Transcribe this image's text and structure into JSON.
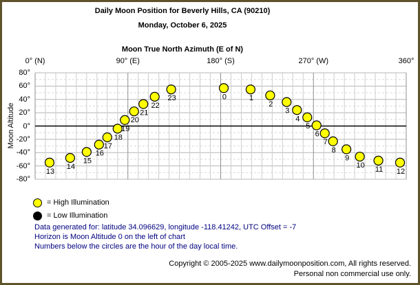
{
  "title": "Daily Moon Position for Beverly Hills, CA (90210)",
  "subtitle": "Monday, October 6, 2025",
  "chart_data": {
    "type": "scatter",
    "title": "Moon True North Azimuth (E of N)",
    "xlabel": "Moon True North Azimuth (E of N)",
    "ylabel": "Moon Altitude",
    "xlim": [
      0,
      360
    ],
    "ylim": [
      -80,
      80
    ],
    "x_minor_step": 10,
    "y_minor_step": 10,
    "y_major_step": 20,
    "grid": true,
    "x_ticks": [
      {
        "value": 0,
        "label": "0° (N)"
      },
      {
        "value": 90,
        "label": "90° (E)"
      },
      {
        "value": 180,
        "label": "180° (S)"
      },
      {
        "value": 270,
        "label": "270° (W)"
      },
      {
        "value": 360,
        "label": "360°"
      }
    ],
    "y_ticks": [
      {
        "value": 80,
        "label": "80°"
      },
      {
        "value": 60,
        "label": "60°"
      },
      {
        "value": 40,
        "label": "40°"
      },
      {
        "value": 20,
        "label": "20°"
      },
      {
        "value": 0,
        "label": "0°"
      },
      {
        "value": -20,
        "label": "-20°"
      },
      {
        "value": -40,
        "label": "-40°"
      },
      {
        "value": -60,
        "label": "-60°"
      },
      {
        "value": -80,
        "label": "-80°"
      }
    ],
    "points": [
      {
        "hour": 0,
        "azimuth": 183,
        "altitude": 57,
        "illumination": "high"
      },
      {
        "hour": 1,
        "azimuth": 209,
        "altitude": 55,
        "illumination": "high"
      },
      {
        "hour": 2,
        "azimuth": 228,
        "altitude": 46,
        "illumination": "high"
      },
      {
        "hour": 3,
        "azimuth": 244,
        "altitude": 36,
        "illumination": "high"
      },
      {
        "hour": 4,
        "azimuth": 254,
        "altitude": 24,
        "illumination": "high"
      },
      {
        "hour": 5,
        "azimuth": 264,
        "altitude": 13,
        "illumination": "high"
      },
      {
        "hour": 6,
        "azimuth": 273,
        "altitude": 1,
        "illumination": "high"
      },
      {
        "hour": 7,
        "azimuth": 281,
        "altitude": -11,
        "illumination": "high"
      },
      {
        "hour": 8,
        "azimuth": 289,
        "altitude": -23,
        "illumination": "high"
      },
      {
        "hour": 9,
        "azimuth": 302,
        "altitude": -35,
        "illumination": "high"
      },
      {
        "hour": 10,
        "azimuth": 315,
        "altitude": -46,
        "illumination": "high"
      },
      {
        "hour": 11,
        "azimuth": 333,
        "altitude": -52,
        "illumination": "high"
      },
      {
        "hour": 12,
        "azimuth": 354,
        "altitude": -55,
        "illumination": "high"
      },
      {
        "hour": 13,
        "azimuth": 14,
        "altitude": -55,
        "illumination": "high"
      },
      {
        "hour": 14,
        "azimuth": 34,
        "altitude": -48,
        "illumination": "high"
      },
      {
        "hour": 15,
        "azimuth": 50,
        "altitude": -39,
        "illumination": "high"
      },
      {
        "hour": 16,
        "azimuth": 62,
        "altitude": -28,
        "illumination": "high"
      },
      {
        "hour": 17,
        "azimuth": 70,
        "altitude": -17,
        "illumination": "high"
      },
      {
        "hour": 18,
        "azimuth": 80,
        "altitude": -4,
        "illumination": "high"
      },
      {
        "hour": 19,
        "azimuth": 87,
        "altitude": 9,
        "illumination": "high"
      },
      {
        "hour": 20,
        "azimuth": 96,
        "altitude": 22,
        "illumination": "high"
      },
      {
        "hour": 21,
        "azimuth": 105,
        "altitude": 33,
        "illumination": "high"
      },
      {
        "hour": 22,
        "azimuth": 116,
        "altitude": 44,
        "illumination": "high"
      },
      {
        "hour": 23,
        "azimuth": 132,
        "altitude": 55,
        "illumination": "high"
      }
    ]
  },
  "legend": [
    {
      "label": "= High Illumination",
      "color": "#ffff00"
    },
    {
      "label": "= Low Illumination",
      "color": "#000000"
    }
  ],
  "notes": [
    "Data generated for: latitude 34.096629, longitude -118.41242, UTC Offset = -7",
    "Horizon is Moon Altitude 0 on the left of chart",
    "Numbers below the circles are the hour of the day local time."
  ],
  "footer": [
    "Copyright © 2005-2025 www.dailymoonposition.com, All rights reserved.",
    "Personal non commercial use only."
  ],
  "colors": {
    "frame_border": "#5f532b",
    "note_text": "#000080",
    "point_fill": "#ffff00",
    "point_stroke": "#000000",
    "grid_major_x": "#8f8f8f",
    "grid_minor_x": "#cdcdcd",
    "grid_major_y": "#b4b4b4",
    "grid_minor_y": "#d9d9d9",
    "zero_line": "#000000"
  }
}
